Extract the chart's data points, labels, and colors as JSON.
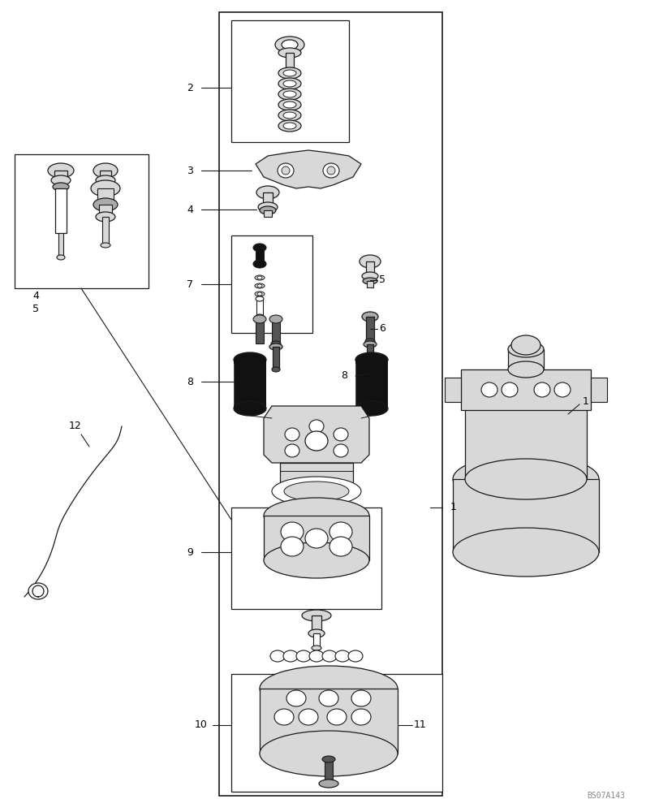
{
  "bg_color": "#ffffff",
  "line_color": "#1a1a1a",
  "fig_width": 7.96,
  "fig_height": 10.0,
  "dpi": 100,
  "watermark": "BS07A143",
  "gray_light": "#d8d8d8",
  "gray_mid": "#aaaaaa",
  "gray_dark": "#555555",
  "black": "#111111",
  "white": "#ffffff"
}
